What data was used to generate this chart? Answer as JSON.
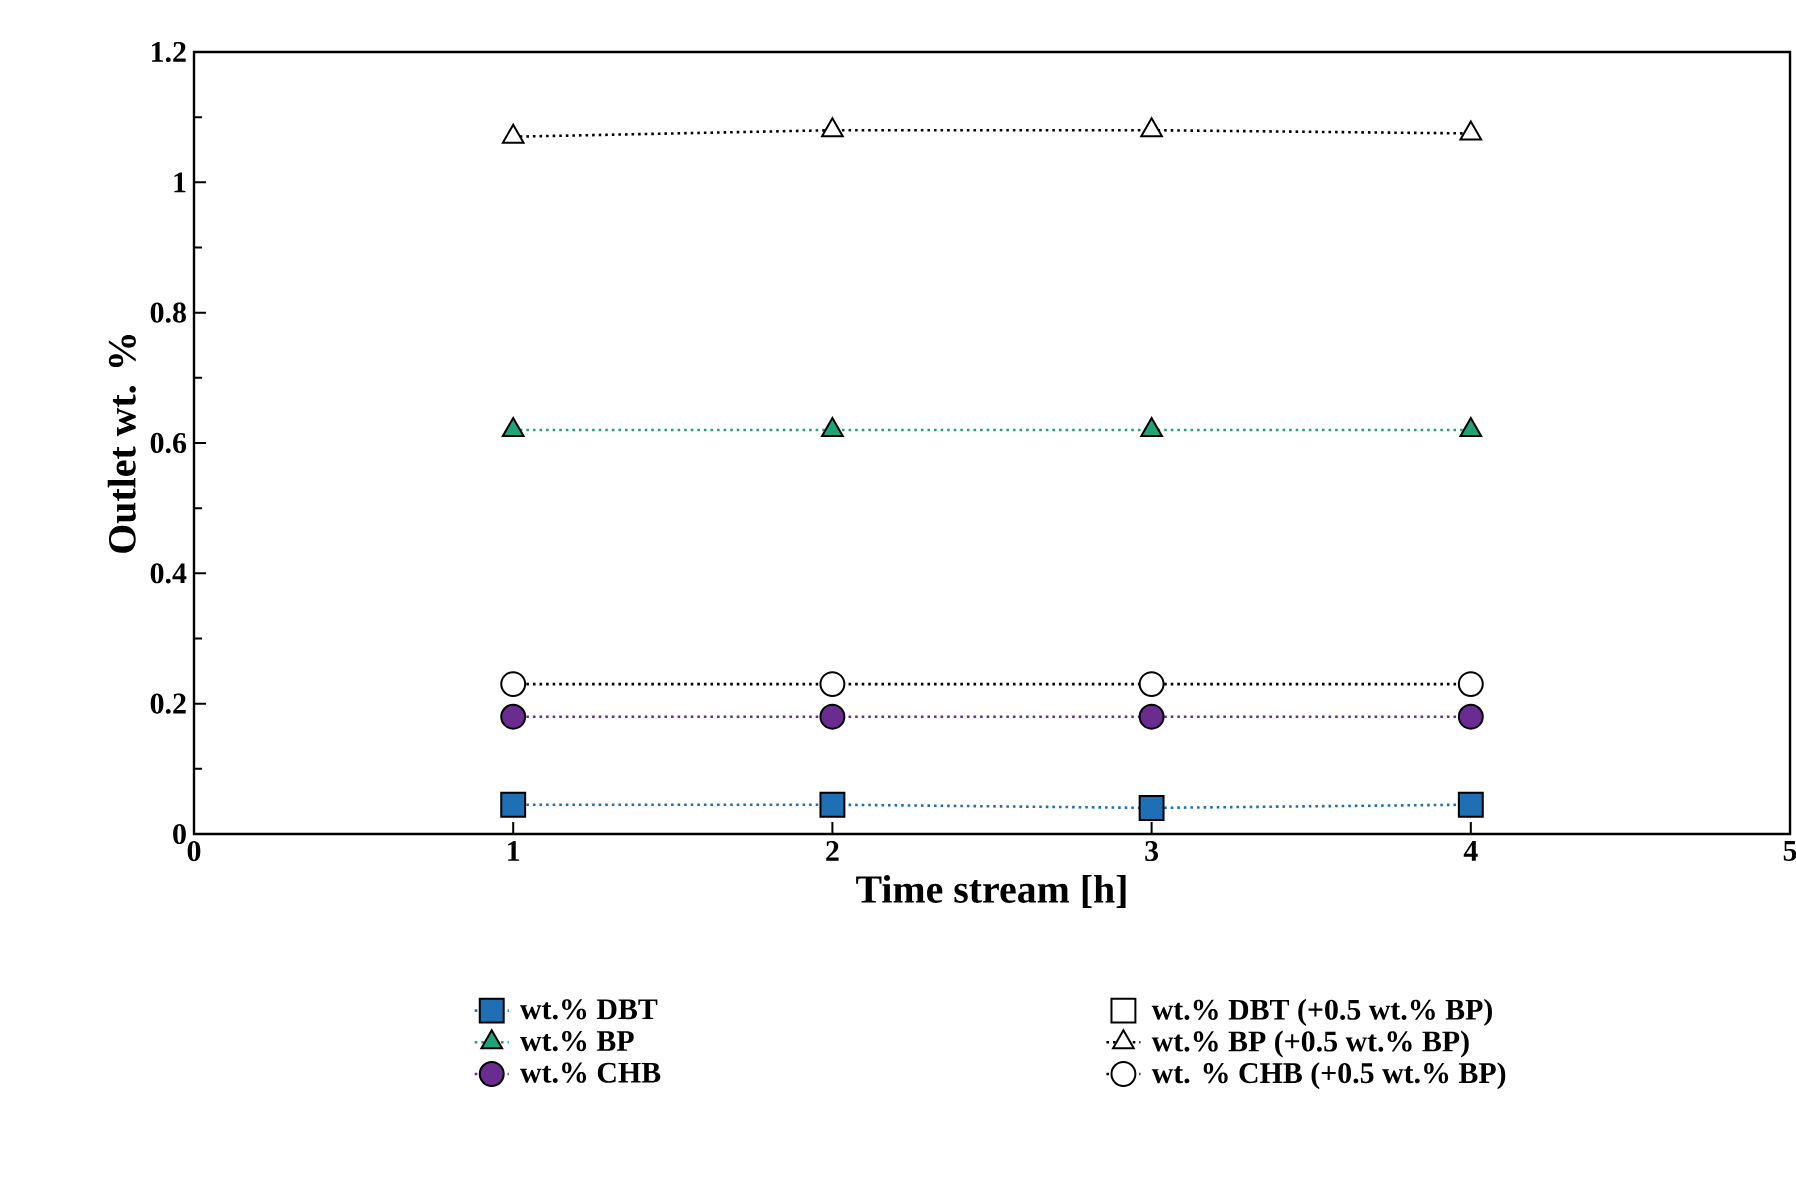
{
  "chart_data": {
    "type": "line",
    "xlabel": "Time stream [h]",
    "ylabel": "Outlet wt. %",
    "x": [
      1,
      2,
      3,
      4
    ],
    "series": [
      {
        "name": "wt.% DBT",
        "color": "#1f6fb5",
        "values": [
          0.045,
          0.045,
          0.04,
          0.045
        ],
        "marker": "square"
      },
      {
        "name": "wt.% DBT (+0.5 wt.% BP)",
        "color": "#000000",
        "values": [
          null,
          null,
          null,
          null
        ],
        "marker": "square"
      },
      {
        "name": "wt.% BP",
        "color": "#1fa37a",
        "values": [
          0.62,
          0.62,
          0.62,
          0.62
        ],
        "marker": "triangle"
      },
      {
        "name": "wt.% BP (+0.5 wt.% BP)",
        "color": "#000000",
        "values": [
          1.07,
          1.08,
          1.08,
          1.075
        ],
        "marker": "triangle"
      },
      {
        "name": "wt.% CHB",
        "color": "#6a2c91",
        "values": [
          0.18,
          0.18,
          0.18,
          0.18
        ],
        "marker": "circle"
      },
      {
        "name": "wt. % CHB (+0.5 wt.% BP)",
        "color": "#000000",
        "values": [
          0.23,
          0.23,
          0.23,
          0.23
        ],
        "marker": "circle"
      }
    ],
    "xlim": [
      0,
      5
    ],
    "xticks": [
      0,
      1,
      2,
      3,
      4,
      5
    ],
    "ylim": [
      0,
      1.2
    ],
    "yticks": [
      0,
      0.2,
      0.4,
      0.6,
      0.8,
      1,
      1.2
    ],
    "line_style": "dotted",
    "grid": false,
    "legend": "bottom"
  }
}
